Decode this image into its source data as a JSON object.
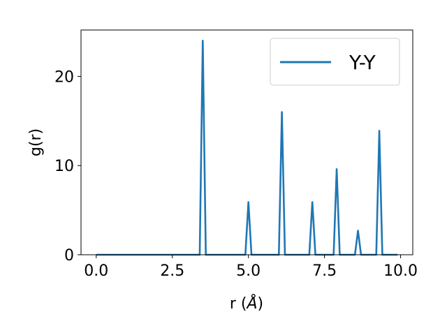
{
  "chart_data": {
    "type": "line",
    "title": "",
    "xlabel": "r (",
    "xlabel_symbol": "Å",
    "xlabel_close": ")",
    "ylabel": "g(r)",
    "xlim": [
      -0.5,
      10.4
    ],
    "ylim": [
      0,
      25.2
    ],
    "xticks": [
      0.0,
      2.5,
      5.0,
      7.5,
      10.0
    ],
    "xtick_labels": [
      "0.0",
      "2.5",
      "5.0",
      "7.5",
      "10.0"
    ],
    "yticks": [
      0,
      10,
      20
    ],
    "ytick_labels": [
      "0",
      "10",
      "20"
    ],
    "grid": false,
    "legend_position": "top-right",
    "series": [
      {
        "name": "Y-Y",
        "color": "#1f77b4",
        "x": [
          0.0,
          3.4,
          3.5,
          3.6,
          4.9,
          5.0,
          5.1,
          6.0,
          6.1,
          6.2,
          7.0,
          7.1,
          7.2,
          7.8,
          7.9,
          8.0,
          8.5,
          8.6,
          8.7,
          9.2,
          9.3,
          9.4,
          9.9
        ],
        "y": [
          0,
          0,
          24.0,
          0,
          0,
          5.9,
          0,
          0,
          16.0,
          0,
          0,
          5.9,
          0,
          0,
          9.6,
          0,
          0,
          2.7,
          0,
          0,
          13.9,
          0,
          0
        ]
      }
    ]
  }
}
